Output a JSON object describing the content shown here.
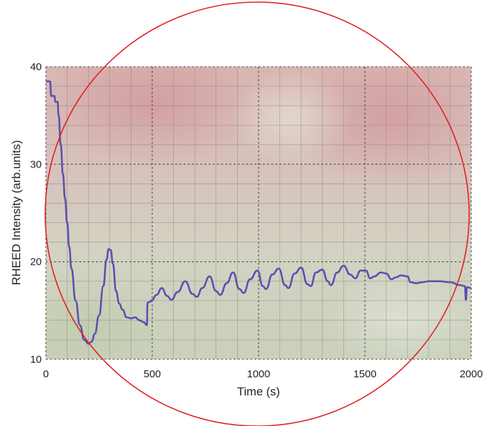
{
  "chart_data": {
    "type": "line",
    "xlabel": "Time (s)",
    "ylabel": "RHEED Intensity (arb.units)",
    "xlim": [
      0,
      2000
    ],
    "ylim": [
      10,
      40
    ],
    "x_ticks": [
      0,
      500,
      1000,
      1500,
      2000
    ],
    "y_ticks": [
      10,
      20,
      30,
      40
    ],
    "grid": true,
    "grid_major_dashed": true,
    "line_color": "#5a4fb0",
    "circle_color": "#e02020",
    "series": [
      {
        "values": [
          [
            0,
            38.5
          ],
          [
            20,
            38.5
          ],
          [
            25,
            37
          ],
          [
            40,
            37
          ],
          [
            45,
            36.4
          ],
          [
            55,
            36.4
          ],
          [
            60,
            35
          ],
          [
            70,
            32
          ],
          [
            80,
            29
          ],
          [
            90,
            26.5
          ],
          [
            100,
            24
          ],
          [
            110,
            21.5
          ],
          [
            120,
            19.3
          ],
          [
            140,
            16
          ],
          [
            160,
            13.5
          ],
          [
            180,
            12
          ],
          [
            200,
            11.6
          ],
          [
            215,
            11.8
          ],
          [
            230,
            12.6
          ],
          [
            250,
            14.5
          ],
          [
            270,
            17.5
          ],
          [
            285,
            20.2
          ],
          [
            295,
            21.3
          ],
          [
            305,
            21.2
          ],
          [
            315,
            19.8
          ],
          [
            330,
            17
          ],
          [
            345,
            15.7
          ],
          [
            360,
            15.1
          ],
          [
            380,
            14.3
          ],
          [
            400,
            14.2
          ],
          [
            420,
            14.3
          ],
          [
            440,
            14
          ],
          [
            460,
            13.8
          ],
          [
            475,
            13.5
          ],
          [
            478,
            15.8
          ],
          [
            490,
            15.9
          ],
          [
            500,
            16.1
          ],
          [
            520,
            16.6
          ],
          [
            545,
            17.3
          ],
          [
            570,
            16.5
          ],
          [
            590,
            16.1
          ],
          [
            620,
            16.9
          ],
          [
            655,
            18.0
          ],
          [
            690,
            16.7
          ],
          [
            710,
            16.4
          ],
          [
            735,
            17.3
          ],
          [
            770,
            18.5
          ],
          [
            800,
            17.0
          ],
          [
            820,
            16.6
          ],
          [
            850,
            17.8
          ],
          [
            880,
            18.9
          ],
          [
            910,
            17.2
          ],
          [
            930,
            16.8
          ],
          [
            960,
            18.2
          ],
          [
            995,
            19.1
          ],
          [
            1020,
            17.5
          ],
          [
            1035,
            17.2
          ],
          [
            1065,
            18.7
          ],
          [
            1095,
            19.3
          ],
          [
            1125,
            17.6
          ],
          [
            1140,
            17.3
          ],
          [
            1170,
            18.8
          ],
          [
            1200,
            19.4
          ],
          [
            1230,
            17.7
          ],
          [
            1245,
            17.5
          ],
          [
            1270,
            18.9
          ],
          [
            1300,
            19.2
          ],
          [
            1325,
            18.0
          ],
          [
            1340,
            17.6
          ],
          [
            1370,
            18.9
          ],
          [
            1400,
            19.6
          ],
          [
            1430,
            18.7
          ],
          [
            1455,
            18.3
          ],
          [
            1480,
            19.1
          ],
          [
            1505,
            19.1
          ],
          [
            1525,
            18.3
          ],
          [
            1545,
            18.5
          ],
          [
            1575,
            18.9
          ],
          [
            1600,
            18.8
          ],
          [
            1625,
            18.2
          ],
          [
            1645,
            18.4
          ],
          [
            1670,
            18.6
          ],
          [
            1700,
            18.5
          ],
          [
            1715,
            17.9
          ],
          [
            1740,
            17.8
          ],
          [
            1770,
            17.9
          ],
          [
            1800,
            18.0
          ],
          [
            1850,
            18.0
          ],
          [
            1900,
            17.9
          ],
          [
            1950,
            17.6
          ],
          [
            1970,
            17.5
          ],
          [
            1975,
            16.1
          ],
          [
            1980,
            17.4
          ],
          [
            2000,
            17.3
          ],
          [
            2020,
            17.1
          ]
        ]
      }
    ]
  }
}
